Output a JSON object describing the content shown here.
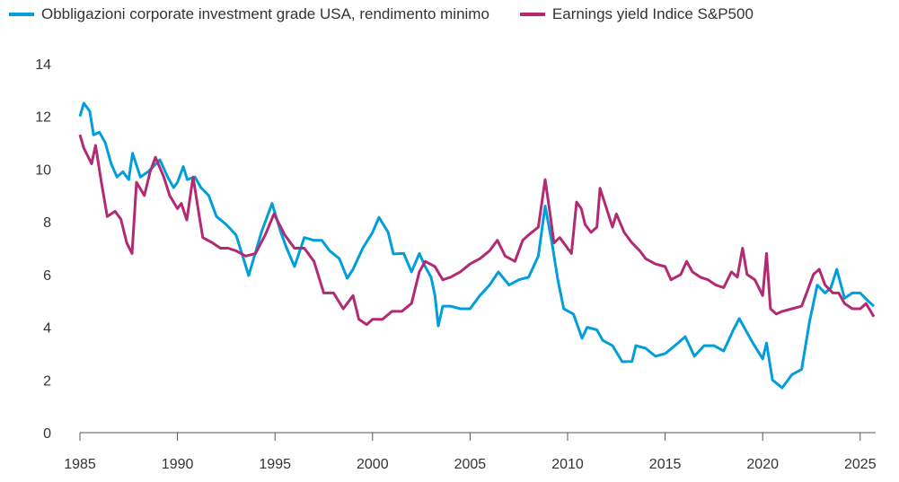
{
  "chart_data": {
    "type": "line",
    "title": "",
    "xlabel": "",
    "ylabel": "",
    "xlim": [
      1985,
      2025.8
    ],
    "ylim": [
      0,
      14
    ],
    "x_ticks": [
      "1985",
      "1990",
      "1995",
      "2000",
      "2005",
      "2010",
      "2015",
      "2020",
      "2025"
    ],
    "y_ticks": [
      "0",
      "2",
      "4",
      "6",
      "8",
      "10",
      "12",
      "14"
    ],
    "grid": false,
    "legend_placement": "top",
    "series": [
      {
        "name": "Obbligazioni corporate investment grade USA, rendimento minimo",
        "color": "#009FDB",
        "x": [
          1985.0,
          1985.2,
          1985.5,
          1985.7,
          1986.0,
          1986.3,
          1986.6,
          1986.9,
          1987.2,
          1987.5,
          1987.7,
          1988.1,
          1988.5,
          1989.1,
          1989.5,
          1989.8,
          1990.0,
          1990.3,
          1990.5,
          1990.9,
          1991.2,
          1991.6,
          1992.0,
          1992.5,
          1993.0,
          1993.3,
          1993.65,
          1994.3,
          1994.85,
          1995.3,
          1995.6,
          1996.0,
          1996.5,
          1997.0,
          1997.4,
          1997.8,
          1998.3,
          1998.7,
          1999.0,
          1999.5,
          2000.0,
          2000.33,
          2000.8,
          2001.07,
          2001.6,
          2002.0,
          2002.4,
          2002.7,
          2003.0,
          2003.2,
          2003.37,
          2003.6,
          2004.0,
          2004.5,
          2005.0,
          2005.5,
          2006.0,
          2006.45,
          2007.0,
          2007.5,
          2008.0,
          2008.5,
          2008.85,
          2009.2,
          2009.5,
          2009.8,
          2010.3,
          2010.74,
          2011.0,
          2011.5,
          2011.8,
          2012.3,
          2012.8,
          2013.3,
          2013.5,
          2014.0,
          2014.5,
          2015.0,
          2015.5,
          2016.03,
          2016.5,
          2017.0,
          2017.5,
          2018.0,
          2018.5,
          2018.8,
          2019.5,
          2020.0,
          2020.2,
          2020.5,
          2021.0,
          2021.5,
          2022.0,
          2022.4,
          2022.8,
          2023.2,
          2023.5,
          2023.8,
          2024.2,
          2024.6,
          2025.0,
          2025.4,
          2025.7
        ],
        "values": [
          12.0,
          12.5,
          12.2,
          11.3,
          11.4,
          11.0,
          10.2,
          9.7,
          9.9,
          9.6,
          10.6,
          9.7,
          9.9,
          10.35,
          9.7,
          9.3,
          9.5,
          10.1,
          9.6,
          9.7,
          9.3,
          9.0,
          8.2,
          7.9,
          7.5,
          6.8,
          5.96,
          7.6,
          8.7,
          7.6,
          7.0,
          6.3,
          7.4,
          7.3,
          7.3,
          6.9,
          6.6,
          5.86,
          6.2,
          7.0,
          7.6,
          8.17,
          7.6,
          6.78,
          6.8,
          6.1,
          6.8,
          6.3,
          5.9,
          5.2,
          4.05,
          4.8,
          4.8,
          4.7,
          4.7,
          5.2,
          5.6,
          6.1,
          5.6,
          5.8,
          5.9,
          6.7,
          8.6,
          7.2,
          5.8,
          4.7,
          4.5,
          3.58,
          4.0,
          3.9,
          3.5,
          3.3,
          2.69,
          2.7,
          3.3,
          3.2,
          2.9,
          3.0,
          3.3,
          3.64,
          2.9,
          3.3,
          3.3,
          3.1,
          3.9,
          4.33,
          3.4,
          2.8,
          3.4,
          2.0,
          1.7,
          2.2,
          2.4,
          4.2,
          5.6,
          5.3,
          5.5,
          6.2,
          5.1,
          5.3,
          5.3,
          5.0,
          4.8
        ]
      },
      {
        "name": "Earnings yield Indice S&P500",
        "color": "#B22A72",
        "x": [
          1985.0,
          1985.2,
          1985.6,
          1985.8,
          1986.1,
          1986.4,
          1986.8,
          1987.1,
          1987.4,
          1987.67,
          1987.9,
          1988.3,
          1988.6,
          1988.87,
          1989.3,
          1989.6,
          1990.0,
          1990.2,
          1990.48,
          1990.8,
          1991.1,
          1991.3,
          1991.8,
          1992.2,
          1992.6,
          1993.0,
          1993.5,
          1994.0,
          1994.5,
          1994.95,
          1995.5,
          1996.0,
          1996.5,
          1997.0,
          1997.5,
          1998.0,
          1998.5,
          1999.0,
          1999.3,
          1999.7,
          2000.0,
          2000.5,
          2001.0,
          2001.5,
          2002.0,
          2002.4,
          2002.7,
          2003.2,
          2003.6,
          2004.0,
          2004.5,
          2005.0,
          2005.5,
          2006.0,
          2006.4,
          2006.8,
          2007.3,
          2007.7,
          2008.0,
          2008.5,
          2008.85,
          2009.1,
          2009.3,
          2009.6,
          2010.2,
          2010.46,
          2010.7,
          2010.9,
          2011.2,
          2011.5,
          2011.66,
          2012.0,
          2012.3,
          2012.5,
          2012.9,
          2013.3,
          2013.7,
          2014.0,
          2014.5,
          2015.0,
          2015.3,
          2015.8,
          2016.1,
          2016.4,
          2016.8,
          2017.2,
          2017.6,
          2018.0,
          2018.4,
          2018.7,
          2018.97,
          2019.2,
          2019.6,
          2020.0,
          2020.2,
          2020.4,
          2020.7,
          2021.0,
          2021.5,
          2022.0,
          2022.3,
          2022.6,
          2022.9,
          2023.2,
          2023.6,
          2023.9,
          2024.2,
          2024.6,
          2025.0,
          2025.3,
          2025.7
        ],
        "values": [
          11.3,
          10.8,
          10.2,
          10.9,
          9.5,
          8.2,
          8.4,
          8.1,
          7.2,
          6.8,
          9.5,
          9.0,
          9.9,
          10.45,
          9.7,
          9.0,
          8.5,
          8.7,
          8.07,
          9.7,
          8.3,
          7.4,
          7.2,
          7.0,
          7.0,
          6.9,
          6.7,
          6.8,
          7.5,
          8.3,
          7.5,
          7.0,
          7.0,
          6.5,
          5.3,
          5.3,
          4.7,
          5.2,
          4.3,
          4.1,
          4.3,
          4.3,
          4.6,
          4.6,
          4.9,
          6.1,
          6.5,
          6.3,
          5.8,
          5.9,
          6.1,
          6.4,
          6.6,
          6.9,
          7.3,
          6.7,
          6.5,
          7.3,
          7.5,
          7.8,
          9.6,
          8.3,
          7.2,
          7.4,
          6.8,
          8.75,
          8.5,
          7.9,
          7.6,
          7.8,
          9.27,
          8.5,
          7.8,
          8.3,
          7.6,
          7.2,
          6.9,
          6.6,
          6.4,
          6.3,
          5.8,
          6.0,
          6.5,
          6.1,
          5.9,
          5.8,
          5.6,
          5.5,
          6.1,
          5.9,
          7.0,
          6.0,
          5.8,
          5.2,
          6.8,
          4.7,
          4.5,
          4.6,
          4.7,
          4.8,
          5.4,
          6.0,
          6.2,
          5.6,
          5.3,
          5.3,
          4.9,
          4.7,
          4.7,
          4.9,
          4.4
        ]
      }
    ]
  }
}
